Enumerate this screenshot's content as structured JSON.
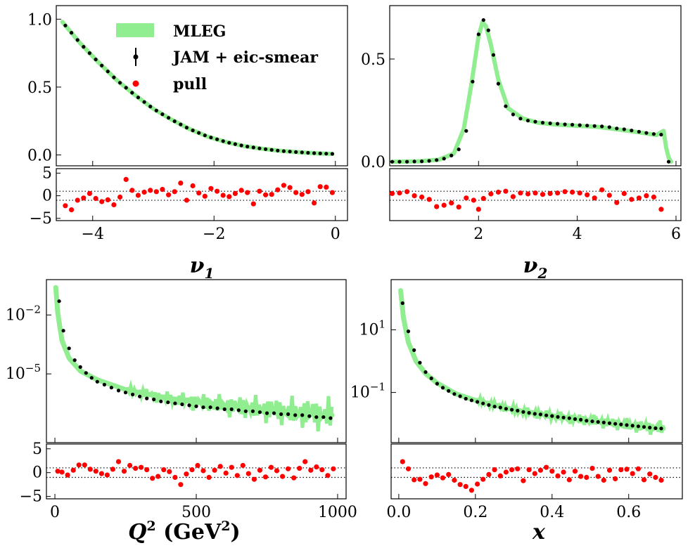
{
  "legend": {
    "mleg": "MLEG",
    "jam": "JAM + eic-smear",
    "pull": "pull"
  },
  "colors": {
    "band": "#90EE90",
    "data": "#000000",
    "pull": "#FF0000"
  },
  "chart_data": [
    {
      "id": "nu1",
      "type": "line",
      "xlabel": "ν1",
      "xlim": [
        -4.6,
        0.2
      ],
      "ylim": [
        -0.08,
        1.1
      ],
      "yscale": "linear",
      "xticks": [
        -4,
        -2,
        0
      ],
      "xtick_labels": [
        "−4",
        "−2",
        "0"
      ],
      "yticks": [
        0.0,
        0.5,
        1.0
      ],
      "ytick_labels": [
        "0.0",
        "0.5",
        "1.0"
      ],
      "curve_x": [
        -4.5,
        -4.2,
        -3.9,
        -3.6,
        -3.3,
        -3.0,
        -2.7,
        -2.4,
        -2.1,
        -1.8,
        -1.5,
        -1.2,
        -0.9,
        -0.6,
        -0.3,
        -0.05
      ],
      "curve_y": [
        0.98,
        0.82,
        0.68,
        0.55,
        0.44,
        0.34,
        0.26,
        0.19,
        0.135,
        0.095,
        0.065,
        0.045,
        0.03,
        0.02,
        0.012,
        0.008
      ],
      "pull_ylim": [
        -5.5,
        6
      ],
      "pull_yticks": [
        5,
        0,
        -5
      ],
      "pull_ytick_labels": [
        "5",
        "0",
        "−5"
      ],
      "pull_x": [
        -4.45,
        -4.35,
        -4.25,
        -4.15,
        -4.05,
        -3.95,
        -3.85,
        -3.75,
        -3.65,
        -3.55,
        -3.45,
        -3.35,
        -3.25,
        -3.15,
        -3.05,
        -2.95,
        -2.85,
        -2.75,
        -2.65,
        -2.55,
        -2.45,
        -2.35,
        -2.25,
        -2.15,
        -2.05,
        -1.95,
        -1.85,
        -1.75,
        -1.65,
        -1.55,
        -1.45,
        -1.35,
        -1.25,
        -1.15,
        -1.05,
        -0.95,
        -0.85,
        -0.75,
        -0.65,
        -0.55,
        -0.45,
        -0.35,
        -0.25,
        -0.15,
        -0.05
      ],
      "pull_y": [
        -2.2,
        -3.1,
        -1.0,
        -0.5,
        0.5,
        -0.6,
        -1.3,
        -0.9,
        -2.0,
        -0.3,
        3.6,
        1.2,
        0.1,
        0.8,
        1.2,
        0.9,
        1.4,
        0.2,
        0.9,
        2.8,
        -1.0,
        2.2,
        0.6,
        -0.1,
        1.6,
        1.0,
        0.1,
        -0.2,
        0.5,
        1.2,
        0.7,
        -1.8,
        1.0,
        0.2,
        0.3,
        1.3,
        2.3,
        1.8,
        0.7,
        0.3,
        0.9,
        -1.6,
        2.0,
        1.9,
        0.7
      ]
    },
    {
      "id": "nu2",
      "type": "line",
      "xlabel": "ν2",
      "xlim": [
        0.2,
        6.1
      ],
      "ylim": [
        -0.02,
        0.76
      ],
      "yscale": "linear",
      "xticks": [
        2,
        4,
        6
      ],
      "xtick_labels": [
        "2",
        "4",
        "6"
      ],
      "yticks": [
        0.0,
        0.5
      ],
      "ytick_labels": [
        "0.0",
        "0.5"
      ],
      "curve_x": [
        0.25,
        0.8,
        1.2,
        1.5,
        1.7,
        1.85,
        2.0,
        2.08,
        2.15,
        2.25,
        2.4,
        2.6,
        2.9,
        3.2,
        3.6,
        4.0,
        4.4,
        4.8,
        5.2,
        5.6,
        5.75,
        5.8,
        5.85,
        5.9
      ],
      "curve_y": [
        0.0,
        0.002,
        0.01,
        0.04,
        0.16,
        0.37,
        0.61,
        0.68,
        0.66,
        0.57,
        0.4,
        0.26,
        0.21,
        0.19,
        0.18,
        0.175,
        0.17,
        0.158,
        0.145,
        0.13,
        0.15,
        0.07,
        0.02,
        0.0
      ],
      "points_x": [
        0.25,
        0.4,
        0.55,
        0.7,
        0.85,
        1.0,
        1.15,
        1.3,
        1.45,
        1.6,
        1.75,
        1.88,
        2.0,
        2.1,
        2.2,
        2.3,
        2.4,
        2.55,
        2.7,
        2.85,
        3.0,
        3.15,
        3.3,
        3.45,
        3.6,
        3.75,
        3.9,
        4.05,
        4.2,
        4.35,
        4.5,
        4.65,
        4.8,
        4.95,
        5.1,
        5.25,
        5.4,
        5.55,
        5.7,
        5.85
      ],
      "points_y": [
        0.0,
        0.0,
        0.0,
        0.001,
        0.002,
        0.004,
        0.008,
        0.015,
        0.03,
        0.06,
        0.15,
        0.39,
        0.62,
        0.69,
        0.64,
        0.52,
        0.38,
        0.27,
        0.23,
        0.21,
        0.2,
        0.195,
        0.19,
        0.187,
        0.185,
        0.182,
        0.18,
        0.178,
        0.176,
        0.174,
        0.172,
        0.168,
        0.162,
        0.158,
        0.152,
        0.146,
        0.14,
        0.135,
        0.132,
        0.0
      ],
      "pull_ylim": [
        -5.5,
        6
      ],
      "pull_yticks": [],
      "pull_ytick_labels": [],
      "pull_x": [
        0.25,
        0.4,
        0.55,
        0.7,
        0.85,
        1.0,
        1.15,
        1.3,
        1.45,
        1.6,
        1.75,
        1.9,
        2.0,
        2.1,
        2.25,
        2.4,
        2.55,
        2.7,
        2.85,
        3.0,
        3.15,
        3.3,
        3.45,
        3.6,
        3.75,
        3.9,
        4.05,
        4.2,
        4.35,
        4.5,
        4.65,
        4.8,
        4.95,
        5.1,
        5.25,
        5.4,
        5.55,
        5.7
      ],
      "pull_y": [
        0.5,
        0.6,
        0.9,
        0.0,
        -0.3,
        -0.8,
        -2.4,
        -2.1,
        -1.6,
        -2.5,
        -0.5,
        -1.0,
        -3.0,
        -0.6,
        0.4,
        0.8,
        1.0,
        -0.2,
        0.6,
        0.4,
        0.6,
        0.3,
        0.5,
        0.6,
        0.9,
        0.8,
        0.6,
        0.2,
        -0.5,
        1.3,
        0.1,
        -1.5,
        0.5,
        -0.8,
        -0.5,
        0.0,
        -0.3,
        -3.0
      ]
    },
    {
      "id": "q2",
      "type": "line",
      "xlabel": "Q² (GeV²)",
      "xlim": [
        -30,
        1030
      ],
      "ylim_log10": [
        -8.5,
        -0.2
      ],
      "yscale": "log",
      "xticks": [
        0,
        500,
        1000
      ],
      "xtick_labels": [
        "0",
        "500",
        "1000"
      ],
      "ytick_log10": [
        -2,
        -5
      ],
      "ytick_labels": [
        "10",
        "10"
      ],
      "ytick_exps": [
        "−2",
        "−5"
      ],
      "curve_x": [
        3,
        10,
        25,
        50,
        90,
        150,
        250,
        400,
        600,
        800,
        980
      ],
      "curve_log10": [
        -0.6,
        -1.9,
        -3.3,
        -4.2,
        -4.85,
        -5.3,
        -5.8,
        -6.25,
        -6.6,
        -6.9,
        -7.1
      ],
      "points_x": [
        15,
        30,
        50,
        70,
        90,
        110,
        130,
        150,
        175,
        200,
        225,
        250,
        275,
        300,
        325,
        350,
        375,
        400,
        425,
        450,
        475,
        500,
        525,
        550,
        575,
        600,
        625,
        650,
        675,
        700,
        725,
        750,
        775,
        800,
        825,
        850,
        875,
        900,
        925,
        950,
        975
      ],
      "points_log10": [
        -1.3,
        -2.8,
        -3.7,
        -4.3,
        -4.65,
        -4.95,
        -5.2,
        -5.4,
        -5.55,
        -5.7,
        -5.85,
        -5.95,
        -6.05,
        -6.15,
        -6.25,
        -6.3,
        -6.4,
        -6.45,
        -6.5,
        -6.55,
        -6.6,
        -6.65,
        -6.7,
        -6.7,
        -6.75,
        -6.8,
        -6.8,
        -6.85,
        -6.9,
        -6.9,
        -6.95,
        -7.0,
        -7.0,
        -7.05,
        -7.05,
        -7.1,
        -7.1,
        -7.15,
        -7.2,
        -7.2,
        -7.25
      ],
      "pull_ylim": [
        -5.5,
        6
      ],
      "pull_yticks": [
        5,
        0,
        -5
      ],
      "pull_ytick_labels": [
        "5",
        "0",
        "−5"
      ],
      "pull_x": [
        10,
        25,
        45,
        65,
        85,
        105,
        125,
        145,
        165,
        185,
        205,
        225,
        245,
        265,
        285,
        305,
        325,
        345,
        365,
        385,
        405,
        425,
        445,
        465,
        485,
        505,
        525,
        545,
        565,
        585,
        605,
        625,
        645,
        665,
        685,
        705,
        725,
        745,
        765,
        785,
        805,
        825,
        845,
        865,
        885,
        905,
        925,
        945,
        965,
        985
      ],
      "pull_y": [
        0.3,
        0.1,
        -0.5,
        0.5,
        1.6,
        1.6,
        0.7,
        0.3,
        -0.2,
        -0.5,
        0.7,
        2.3,
        0.3,
        1.5,
        0.9,
        1.1,
        0.6,
        -1.2,
        -0.8,
        0.6,
        0.2,
        -1.0,
        -2.5,
        -0.3,
        0.6,
        1.5,
        0.4,
        -1.0,
        0.5,
        1.3,
        -0.1,
        1.1,
        -0.6,
        1.5,
        -0.2,
        -1.4,
        0.5,
        -0.9,
        1.1,
        0.4,
        -0.8,
        0.8,
        -1.1,
        0.9,
        2.3,
        0.5,
        1.2,
        0.6,
        -0.6,
        0.8
      ]
    },
    {
      "id": "x",
      "type": "line",
      "xlabel": "x",
      "xlim": [
        -0.02,
        0.74
      ],
      "ylim_log10": [
        -2.6,
        2.6
      ],
      "yscale": "log",
      "xticks": [
        0.0,
        0.2,
        0.4,
        0.6
      ],
      "xtick_labels": [
        "0.0",
        "0.2",
        "0.4",
        "0.6"
      ],
      "ytick_log10": [
        1,
        -1
      ],
      "ytick_labels": [
        "10",
        "10"
      ],
      "ytick_exps": [
        "1",
        "−1"
      ],
      "curve_x": [
        0.005,
        0.012,
        0.025,
        0.045,
        0.07,
        0.1,
        0.15,
        0.2,
        0.3,
        0.4,
        0.5,
        0.6,
        0.69
      ],
      "curve_log10": [
        2.25,
        1.4,
        0.6,
        0.0,
        -0.4,
        -0.7,
        -1.05,
        -1.25,
        -1.55,
        -1.75,
        -1.9,
        -2.05,
        -2.15
      ],
      "points_x": [
        0.01,
        0.025,
        0.04,
        0.055,
        0.07,
        0.085,
        0.1,
        0.115,
        0.13,
        0.145,
        0.16,
        0.175,
        0.19,
        0.205,
        0.22,
        0.235,
        0.25,
        0.265,
        0.28,
        0.295,
        0.31,
        0.325,
        0.34,
        0.355,
        0.37,
        0.385,
        0.4,
        0.415,
        0.43,
        0.445,
        0.46,
        0.475,
        0.49,
        0.505,
        0.52,
        0.535,
        0.55,
        0.565,
        0.58,
        0.595,
        0.61,
        0.625,
        0.64,
        0.655,
        0.67,
        0.685
      ],
      "points_log10": [
        1.85,
        0.95,
        0.35,
        -0.05,
        -0.35,
        -0.55,
        -0.72,
        -0.85,
        -0.95,
        -1.05,
        -1.12,
        -1.2,
        -1.25,
        -1.3,
        -1.35,
        -1.4,
        -1.45,
        -1.48,
        -1.52,
        -1.55,
        -1.58,
        -1.62,
        -1.65,
        -1.68,
        -1.7,
        -1.73,
        -1.75,
        -1.78,
        -1.8,
        -1.82,
        -1.85,
        -1.87,
        -1.9,
        -1.92,
        -1.94,
        -1.96,
        -1.98,
        -2.0,
        -2.02,
        -2.04,
        -2.06,
        -2.08,
        -2.1,
        -2.12,
        -2.14,
        -2.15
      ],
      "pull_ylim": [
        -5.5,
        6
      ],
      "pull_yticks": [],
      "pull_ytick_labels": [],
      "pull_x": [
        0.01,
        0.025,
        0.04,
        0.055,
        0.07,
        0.085,
        0.1,
        0.115,
        0.13,
        0.145,
        0.16,
        0.175,
        0.19,
        0.205,
        0.22,
        0.235,
        0.25,
        0.265,
        0.28,
        0.295,
        0.31,
        0.325,
        0.34,
        0.355,
        0.37,
        0.385,
        0.4,
        0.415,
        0.43,
        0.445,
        0.46,
        0.475,
        0.49,
        0.505,
        0.52,
        0.535,
        0.55,
        0.565,
        0.58,
        0.595,
        0.61,
        0.625,
        0.64,
        0.655,
        0.67,
        0.685
      ],
      "pull_y": [
        2.3,
        0.8,
        -1.5,
        -1.4,
        -2.3,
        -0.9,
        -0.5,
        -1.1,
        -0.4,
        -1.6,
        -2.5,
        -2.9,
        -3.7,
        -2.4,
        -1.4,
        -0.4,
        0.6,
        -0.7,
        0.1,
        0.6,
        0.8,
        -1.7,
        0.6,
        -0.2,
        0.5,
        1.1,
        0.3,
        -0.7,
        0.1,
        -1.5,
        0.3,
        -0.8,
        -1.0,
        0.9,
        -0.8,
        -1.6,
        0.5,
        -1.3,
        0.6,
        0.7,
        -0.2,
        0.8,
        -1.5,
        -0.3,
        -1.0,
        -1.6
      ]
    }
  ]
}
